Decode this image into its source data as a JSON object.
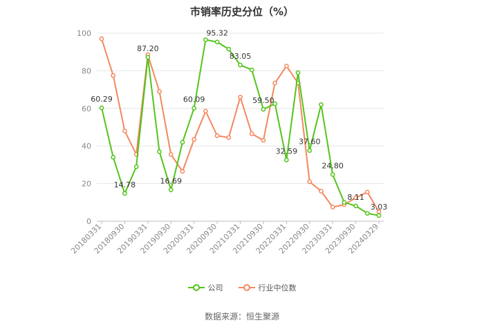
{
  "chart_data": {
    "type": "line",
    "title": "市销率历史分位（%）",
    "ylim": [
      0,
      100
    ],
    "y_ticks": [
      0,
      20,
      40,
      60,
      80,
      100
    ],
    "x_tick_labels": [
      "20180331",
      "20180930",
      "20190331",
      "20190930",
      "20200331",
      "20200930",
      "20210331",
      "20210930",
      "20220331",
      "20220930",
      "20230331",
      "20230930",
      "20240329"
    ],
    "x_count": 25,
    "grid": "horizontal",
    "legend_position": "bottom",
    "series": [
      {
        "name": "公司",
        "color": "#52c41a",
        "values": [
          60.29,
          34,
          14.78,
          29,
          87.2,
          37,
          16.69,
          42,
          60.09,
          96.5,
          95.32,
          91.5,
          83.05,
          80.5,
          59.5,
          62.5,
          32.59,
          79,
          37.6,
          62,
          24.8,
          10,
          8.11,
          4.2,
          3.03
        ],
        "labels": {
          "0": "60.29",
          "2": "14.78",
          "4": "87.20",
          "6": "16.69",
          "8": "60.09",
          "10": "95.32",
          "12": "83.05",
          "14": "59.50",
          "16": "32.59",
          "18": "37.60",
          "20": "24.80",
          "22": "8.11",
          "24": "3.03"
        }
      },
      {
        "name": "行业中位数",
        "color": "#f4875d",
        "values": [
          97,
          77.5,
          48,
          35.5,
          88.5,
          69,
          35.5,
          26.5,
          43.5,
          58.5,
          45.5,
          44.5,
          66,
          46.5,
          43,
          73.5,
          82.5,
          73.5,
          21,
          16,
          7.5,
          8.8,
          12.5,
          15.5,
          5
        ]
      }
    ]
  },
  "legend": [
    {
      "label": "公司",
      "color": "#52c41a"
    },
    {
      "label": "行业中位数",
      "color": "#f4875d"
    }
  ],
  "source": "数据来源：恒生聚源"
}
